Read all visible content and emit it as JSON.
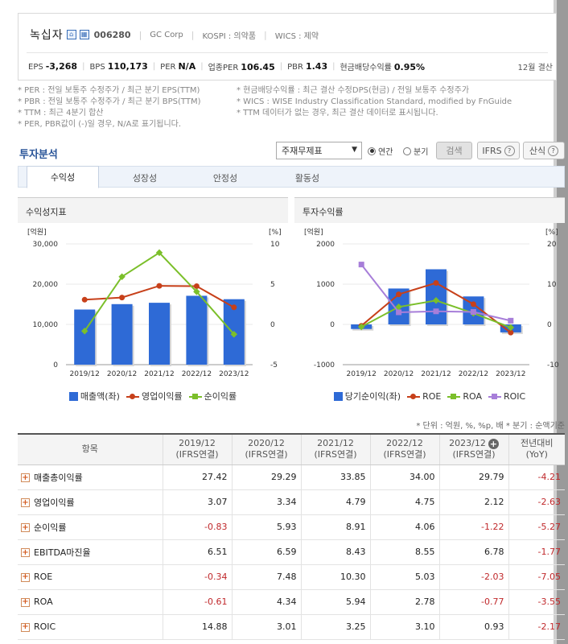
{
  "company": {
    "name": "녹십자",
    "code": "006280",
    "english_name": "GC Corp",
    "market": "KOSPI : 의약품",
    "wics": "WICS : 제약",
    "icon1": "home-icon",
    "icon2": "building-icon"
  },
  "metrics": [
    {
      "label": "EPS",
      "value": "-3,268"
    },
    {
      "label": "BPS",
      "value": "110,173"
    },
    {
      "label": "PER",
      "value": "N/A"
    },
    {
      "label": "업종PER",
      "value": "106.45"
    },
    {
      "label": "PBR",
      "value": "1.43"
    },
    {
      "label": "현금배당수익률",
      "value": "0.95%"
    }
  ],
  "fiscal": "12월 결산",
  "notes": {
    "left": [
      "* PER : 전일 보통주 수정주가 / 최근 분기 EPS(TTM)",
      "* PBR : 전일 보통주 수정주가 / 최근 분기 BPS(TTM)",
      "* TTM : 최근 4분기 합산",
      "* PER, PBR값이 (-)일 경우, N/A로 표기됩니다."
    ],
    "right": [
      "* 현금배당수익률 : 최근 결산 수정DPS(현금) / 전일 보통주 수정주가",
      "* WICS : WISE Industry Classification Standard, modified by FnGuide",
      "* TTM 데이터가 없는 경우, 최근 결산 데이터로 표시됩니다."
    ]
  },
  "section": {
    "title": "투자분석",
    "select_value": "주재무제표",
    "radio_annual": "연간",
    "radio_quarter": "분기",
    "search_button": "검색",
    "ifrs_button": "IFRS",
    "formula_button": "산식"
  },
  "tabs": [
    "수익성",
    "성장성",
    "안정성",
    "활동성"
  ],
  "charts": {
    "left_title": "수익성지표",
    "right_title": "투자수익률"
  },
  "chart_data": [
    {
      "type": "bar",
      "title": "수익성지표",
      "categories": [
        "2019/12",
        "2020/12",
        "2021/12",
        "2022/12",
        "2023/12"
      ],
      "y_left_unit": "[억원]",
      "y_right_unit": "[%]",
      "y_left_ticks": [
        "30,000",
        "20,000",
        "10,000",
        "0"
      ],
      "y_right_ticks": [
        "10",
        "5",
        "0",
        "-5"
      ],
      "ylim_left": [
        0,
        30000
      ],
      "ylim_right": [
        -5,
        10
      ],
      "series": [
        {
          "name": "매출액(좌)",
          "kind": "bar",
          "axis": "left",
          "color": "#2e6ad6",
          "values": [
            13697,
            15041,
            15378,
            17113,
            16266
          ]
        },
        {
          "name": "영업이익률",
          "kind": "line",
          "axis": "right",
          "color": "#c7401a",
          "values": [
            3.07,
            3.34,
            4.79,
            4.75,
            2.12
          ]
        },
        {
          "name": "순이익률",
          "kind": "line",
          "axis": "right",
          "color": "#7bbf2a",
          "values": [
            -0.83,
            5.93,
            8.91,
            4.06,
            -1.22
          ]
        }
      ]
    },
    {
      "type": "bar",
      "title": "투자수익률",
      "categories": [
        "2019/12",
        "2020/12",
        "2021/12",
        "2022/12",
        "2023/12"
      ],
      "y_left_unit": "[억원]",
      "y_right_unit": "[%]",
      "y_left_ticks": [
        "2000",
        "1000",
        "0",
        "-1000"
      ],
      "y_right_ticks": [
        "20",
        "10",
        "0",
        "-10"
      ],
      "ylim_left": [
        -1000,
        2000
      ],
      "ylim_right": [
        -10,
        20
      ],
      "series": [
        {
          "name": "당기순이익(좌)",
          "kind": "bar",
          "axis": "left",
          "color": "#2e6ad6",
          "values": [
            -114,
            892,
            1370,
            695,
            -198
          ]
        },
        {
          "name": "ROE",
          "kind": "line",
          "axis": "right",
          "color": "#c7401a",
          "values": [
            -0.34,
            7.48,
            10.3,
            5.03,
            -2.03
          ]
        },
        {
          "name": "ROA",
          "kind": "line",
          "axis": "right",
          "color": "#7bbf2a",
          "values": [
            -0.61,
            4.34,
            5.94,
            2.78,
            -0.77
          ]
        },
        {
          "name": "ROIC",
          "kind": "line",
          "axis": "right",
          "color": "#a77ed9",
          "values": [
            14.88,
            3.01,
            3.25,
            3.1,
            0.93
          ]
        }
      ]
    }
  ],
  "units_note": "* 단위 : 억원, %, %p, 배   * 분기 : 순액기준",
  "table": {
    "item_header": "항목",
    "columns": [
      {
        "year": "2019/12",
        "basis": "(IFRS연결)"
      },
      {
        "year": "2020/12",
        "basis": "(IFRS연결)"
      },
      {
        "year": "2021/12",
        "basis": "(IFRS연결)"
      },
      {
        "year": "2022/12",
        "basis": "(IFRS연결)"
      },
      {
        "year": "2023/12",
        "basis": "(IFRS연결)"
      },
      {
        "year": "전년대비",
        "basis": "(YoY)"
      }
    ],
    "rows": [
      {
        "name": "매출총이익률",
        "values": [
          "27.42",
          "29.29",
          "33.85",
          "34.00",
          "29.79",
          "-4.21"
        ]
      },
      {
        "name": "영업이익률",
        "values": [
          "3.07",
          "3.34",
          "4.79",
          "4.75",
          "2.12",
          "-2.63"
        ]
      },
      {
        "name": "순이익률",
        "values": [
          "-0.83",
          "5.93",
          "8.91",
          "4.06",
          "-1.22",
          "-5.27"
        ]
      },
      {
        "name": "EBITDA마진율",
        "values": [
          "6.51",
          "6.59",
          "8.43",
          "8.55",
          "6.78",
          "-1.77"
        ]
      },
      {
        "name": "ROE",
        "values": [
          "-0.34",
          "7.48",
          "10.30",
          "5.03",
          "-2.03",
          "-7.05"
        ]
      },
      {
        "name": "ROA",
        "values": [
          "-0.61",
          "4.34",
          "5.94",
          "2.78",
          "-0.77",
          "-3.55"
        ]
      },
      {
        "name": "ROIC",
        "values": [
          "14.88",
          "3.01",
          "3.25",
          "3.10",
          "0.93",
          "-2.17"
        ]
      }
    ]
  }
}
